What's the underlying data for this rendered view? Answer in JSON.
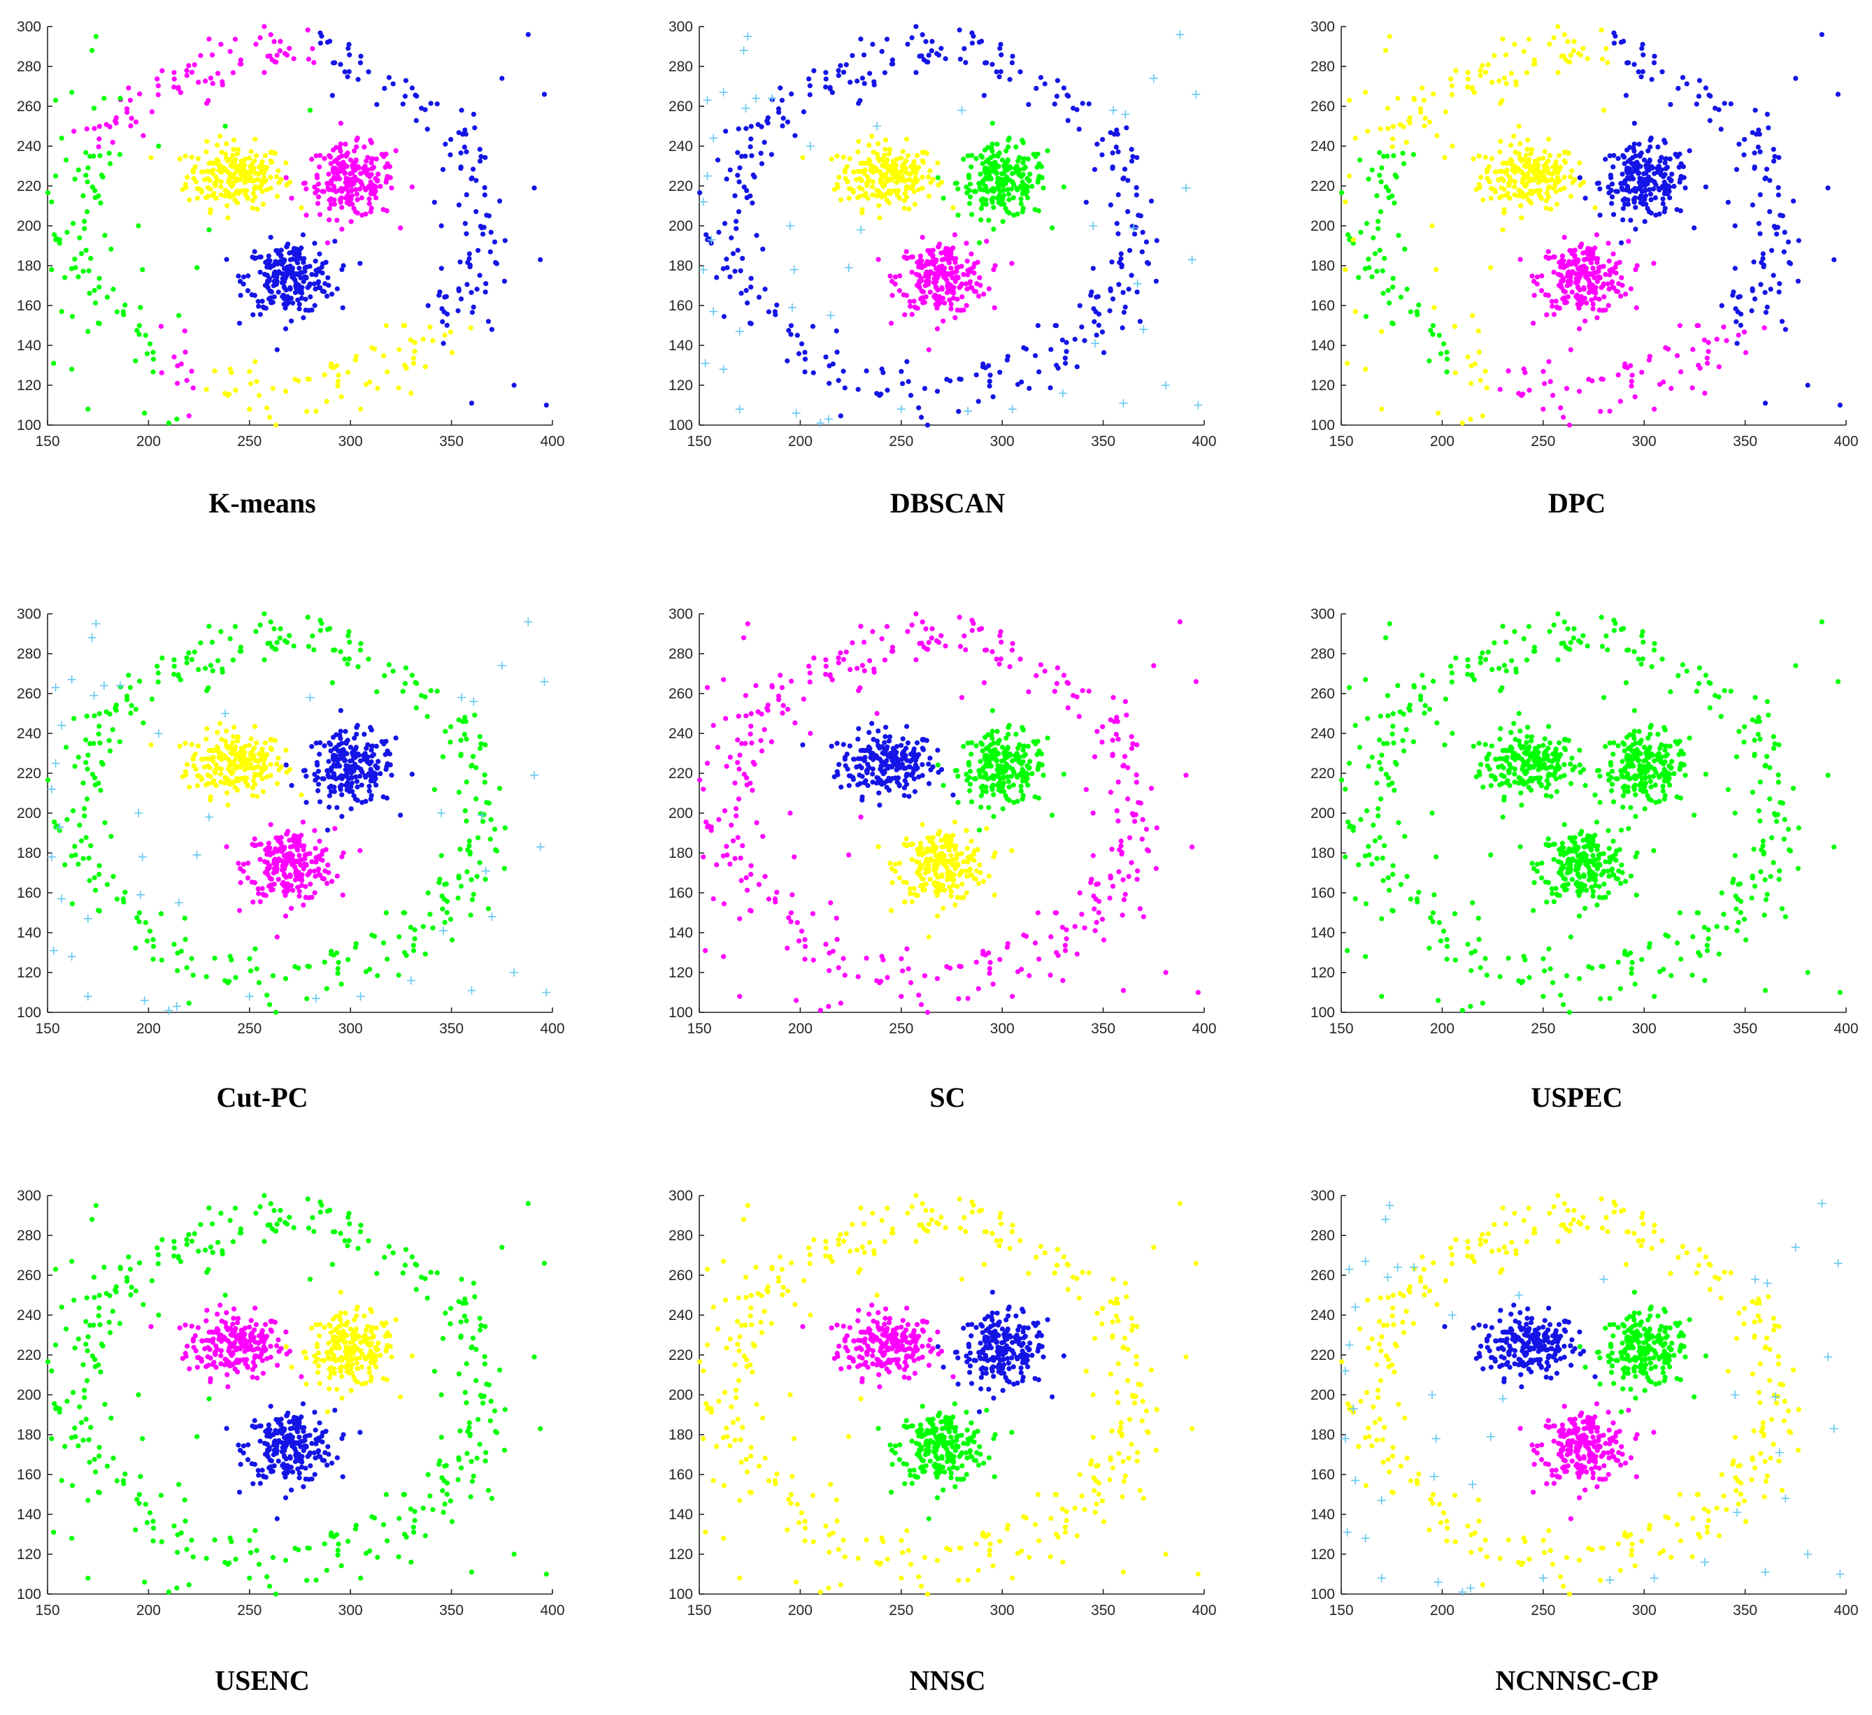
{
  "figure": {
    "x_ticks": [
      "150",
      "200",
      "250",
      "300",
      "350",
      "400"
    ],
    "y_ticks": [
      "100",
      "120",
      "140",
      "160",
      "180",
      "200",
      "220",
      "240",
      "260",
      "280",
      "300"
    ]
  },
  "colors": {
    "blue": "#1414e6",
    "magenta": "#ff00ff",
    "yellow": "#ffff00",
    "green": "#00ff00",
    "noise": "#64c8f0"
  },
  "chart_data": [
    {
      "type": "scatter",
      "title": "K-means",
      "xlim": [
        150,
        400
      ],
      "ylim": [
        100,
        300
      ],
      "assign": {
        "c1": "yellow",
        "c2": "magenta",
        "c3": "blue",
        "ring_top_left": "magenta",
        "ring_top_right": "blue",
        "ring_left": "green",
        "ring_bottom": "yellow",
        "outliers_left": "green",
        "outliers_right": "blue",
        "outliers_bottom": "yellow"
      }
    },
    {
      "type": "scatter",
      "title": "DBSCAN",
      "xlim": [
        150,
        400
      ],
      "ylim": [
        100,
        300
      ],
      "assign": {
        "c1": "yellow",
        "c2": "green",
        "c3": "magenta",
        "ring_top_left": "blue",
        "ring_top_right": "blue",
        "ring_left": "blue",
        "ring_bottom": "blue",
        "outliers_left": "noise",
        "outliers_right": "noise",
        "outliers_bottom": "noise"
      }
    },
    {
      "type": "scatter",
      "title": "DPC",
      "xlim": [
        150,
        400
      ],
      "ylim": [
        100,
        300
      ],
      "assign": {
        "c1": "yellow",
        "c2": "blue",
        "c3": "magenta",
        "ring_top_left": "yellow",
        "ring_top_right": "blue",
        "ring_left": "green",
        "ring_bottom": "magenta",
        "outliers_left": "yellow",
        "outliers_right": "blue",
        "outliers_bottom": "magenta"
      }
    },
    {
      "type": "scatter",
      "title": "Cut-PC",
      "xlim": [
        150,
        400
      ],
      "ylim": [
        100,
        300
      ],
      "assign": {
        "c1": "yellow",
        "c2": "blue",
        "c3": "magenta",
        "ring_top_left": "green",
        "ring_top_right": "green",
        "ring_left": "green",
        "ring_bottom": "green",
        "outliers_left": "noise",
        "outliers_right": "noise",
        "outliers_bottom": "noise"
      }
    },
    {
      "type": "scatter",
      "title": "SC",
      "xlim": [
        150,
        400
      ],
      "ylim": [
        100,
        300
      ],
      "assign": {
        "c1": "blue",
        "c2": "green",
        "c3": "yellow",
        "ring_top_left": "magenta",
        "ring_top_right": "magenta",
        "ring_left": "magenta",
        "ring_bottom": "magenta",
        "outliers_left": "magenta",
        "outliers_right": "magenta",
        "outliers_bottom": "magenta"
      }
    },
    {
      "type": "scatter",
      "title": "USPEC",
      "xlim": [
        150,
        400
      ],
      "ylim": [
        100,
        300
      ],
      "assign": {
        "c1": "green",
        "c2": "green",
        "c3": "green",
        "ring_top_left": "green",
        "ring_top_right": "green",
        "ring_left": "green",
        "ring_bottom": "green",
        "outliers_left": "green",
        "outliers_right": "green",
        "outliers_bottom": "green"
      }
    },
    {
      "type": "scatter",
      "title": "USENC",
      "xlim": [
        150,
        400
      ],
      "ylim": [
        100,
        300
      ],
      "assign": {
        "c1": "magenta",
        "c2": "yellow",
        "c3": "blue",
        "ring_top_left": "green",
        "ring_top_right": "green",
        "ring_left": "green",
        "ring_bottom": "green",
        "outliers_left": "green",
        "outliers_right": "green",
        "outliers_bottom": "green"
      }
    },
    {
      "type": "scatter",
      "title": "NNSC",
      "xlim": [
        150,
        400
      ],
      "ylim": [
        100,
        300
      ],
      "assign": {
        "c1": "magenta",
        "c2": "blue",
        "c3": "green",
        "ring_top_left": "yellow",
        "ring_top_right": "yellow",
        "ring_left": "yellow",
        "ring_bottom": "yellow",
        "outliers_left": "yellow",
        "outliers_right": "yellow",
        "outliers_bottom": "yellow"
      }
    },
    {
      "type": "scatter",
      "title": "NCNNSC-CP",
      "xlim": [
        150,
        400
      ],
      "ylim": [
        100,
        300
      ],
      "assign": {
        "c1": "blue",
        "c2": "green",
        "c3": "magenta",
        "ring_top_left": "yellow",
        "ring_top_right": "yellow",
        "ring_left": "yellow",
        "ring_bottom": "yellow",
        "outliers_left": "noise",
        "outliers_right": "noise",
        "outliers_bottom": "noise"
      }
    }
  ],
  "dataset": {
    "clusters": {
      "c1": {
        "center": [
          243,
          225
        ],
        "spread": [
          12,
          8
        ],
        "count": 220
      },
      "c2": {
        "center": [
          300,
          222
        ],
        "spread": [
          11,
          9
        ],
        "count": 220
      },
      "c3": {
        "center": [
          270,
          174
        ],
        "spread": [
          11,
          9
        ],
        "count": 240
      }
    },
    "ring": {
      "center": [
        265,
        202
      ],
      "radius": [
        100,
        83
      ],
      "jitter": 7,
      "count": 330
    },
    "outliers": [
      [
        154,
        263
      ],
      [
        157,
        244
      ],
      [
        154,
        225
      ],
      [
        152,
        212
      ],
      [
        156,
        193
      ],
      [
        152,
        178
      ],
      [
        157,
        157
      ],
      [
        153,
        131
      ],
      [
        162,
        267
      ],
      [
        170,
        147
      ],
      [
        174,
        295
      ],
      [
        172,
        288
      ],
      [
        162,
        128
      ],
      [
        170,
        108
      ],
      [
        173,
        259
      ],
      [
        178,
        264
      ],
      [
        186,
        264
      ],
      [
        195,
        200
      ],
      [
        197,
        178
      ],
      [
        196,
        159
      ],
      [
        205,
        240
      ],
      [
        210,
        101
      ],
      [
        215,
        155
      ],
      [
        224,
        179
      ],
      [
        230,
        198
      ],
      [
        250,
        108
      ],
      [
        280,
        258
      ],
      [
        283,
        107
      ],
      [
        305,
        108
      ],
      [
        330,
        116
      ],
      [
        346,
        141
      ],
      [
        355,
        258
      ],
      [
        361,
        256
      ],
      [
        365,
        199
      ],
      [
        367,
        171
      ],
      [
        370,
        148
      ],
      [
        375,
        274
      ],
      [
        381,
        120
      ],
      [
        388,
        296
      ],
      [
        391,
        219
      ],
      [
        396,
        266
      ],
      [
        397,
        110
      ],
      [
        394,
        183
      ],
      [
        360,
        111
      ],
      [
        345,
        200
      ],
      [
        238,
        250
      ],
      [
        214,
        103
      ],
      [
        198,
        106
      ]
    ]
  }
}
